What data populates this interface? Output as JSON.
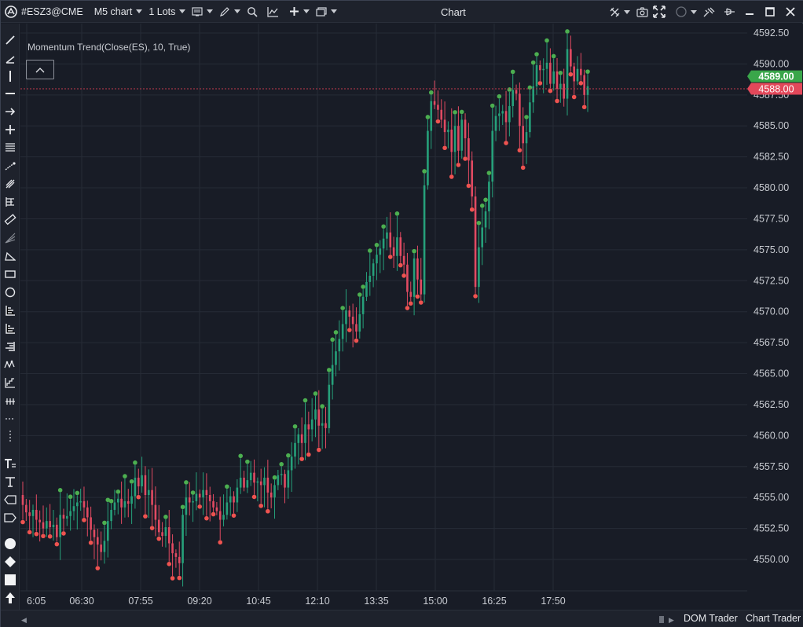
{
  "toolbar": {
    "symbol": "#ESZ3@CME",
    "chart_type": "M5 chart",
    "lots": "1 Lots",
    "title": "Chart"
  },
  "indicator": {
    "label": "Momentum Trend(Close(ES), 10, True)"
  },
  "price_axis": {
    "ticks": [
      "4592.50",
      "4590.00",
      "4587.50",
      "4585.00",
      "4582.50",
      "4580.00",
      "4577.50",
      "4575.00",
      "4572.50",
      "4570.00",
      "4567.50",
      "4565.00",
      "4562.50",
      "4560.00",
      "4557.50",
      "4555.00",
      "4552.50",
      "4550.00"
    ],
    "ask_label": "4589.00",
    "bid_label": "4588.00",
    "ask_color": "#3aa64a",
    "bid_color": "#e2485a"
  },
  "time_axis": {
    "ticks": [
      "6:05",
      "06:30",
      "07:55",
      "09:20",
      "10:45",
      "12:10",
      "13:35",
      "15:00",
      "16:25",
      "17:50"
    ]
  },
  "colors": {
    "up": "#26a07a",
    "down": "#e14a62",
    "dot_up": "#4caf50",
    "dot_down": "#ef5350",
    "grid": "#262b36",
    "background": "#181c26"
  },
  "bottom": {
    "tab_dom": "DOM Trader",
    "tab_chart": "Chart Trader"
  },
  "chart_data": {
    "type": "candlestick",
    "symbol": "#ESZ3@CME",
    "timeframe": "M5",
    "ylim": [
      4548.5,
      4593.5
    ],
    "price_ticks": [
      4592.5,
      4590,
      4587.5,
      4585,
      4582.5,
      4580,
      4577.5,
      4575,
      4572.5,
      4570,
      4567.5,
      4565,
      4562.5,
      4560,
      4557.5,
      4555,
      4552.5,
      4550
    ],
    "time_ticks": [
      "6:05",
      "06:30",
      "07:55",
      "09:20",
      "10:45",
      "12:10",
      "13:35",
      "15:00",
      "16:25",
      "17:50"
    ],
    "current_ask": 4589.0,
    "current_bid": 4588.0,
    "closes": [
      4554.4,
      4553.8,
      4553.5,
      4554.0,
      4553.2,
      4553.0,
      4552.5,
      4553.1,
      4552.6,
      4552.8,
      4551.8,
      4553.6,
      4553.3,
      4553.5,
      4553.9,
      4554.3,
      4554.6,
      4554.7,
      4554.2,
      4553.4,
      4552.4,
      4551.8,
      4551.2,
      4550.6,
      4551.5,
      4553.1,
      4554.0,
      4554.6,
      4554.9,
      4554.2,
      4554.7,
      4554.5,
      4555.1,
      4556.6,
      4555.9,
      4556.8,
      4555.2,
      4555.6,
      4554.4,
      4553.2,
      4552.2,
      4551.9,
      4552.6,
      4551.3,
      4550.5,
      4550.2,
      4549.7,
      4553.6,
      4555.0,
      4554.6,
      4554.7,
      4555.3,
      4555.0,
      4555.6,
      4555.2,
      4554.7,
      4554.2,
      4553.9,
      4553.2,
      4553.6,
      4554.6,
      4555.1,
      4554.6,
      4555.8,
      4556.6,
      4555.8,
      4556.4,
      4557.0,
      4556.2,
      4556.3,
      4556.0,
      4556.6,
      4555.4,
      4555.0,
      4556.0,
      4556.8,
      4556.9,
      4555.8,
      4557.2,
      4558.3,
      4559.4,
      4560.1,
      4559.4,
      4560.9,
      4560.5,
      4561.3,
      4562.1,
      4560.8,
      4561.0,
      4560.6,
      4564.1,
      4565.7,
      4566.8,
      4567.8,
      4569.0,
      4570.1,
      4569.6,
      4569.0,
      4568.4,
      4569.8,
      4571.2,
      4572.4,
      4572.9,
      4573.9,
      4574.6,
      4575.1,
      4575.9,
      4576.4,
      4575.2,
      4574.5,
      4576.0,
      4574.5,
      4573.8,
      4571.6,
      4571.2,
      4574.3,
      4572.6,
      4571.4,
      4580.2,
      4584.6,
      4587.0,
      4586.7,
      4586.3,
      4585.5,
      4584.5,
      4584.7,
      4582.9,
      4585.0,
      4583.0,
      4585.5,
      4584.0,
      4582.2,
      4579.3,
      4572.0,
      4575.2,
      4576.8,
      4578.1,
      4580.5,
      4584.6,
      4585.8,
      4586.0,
      4586.2,
      4585.3,
      4586.6,
      4587.9,
      4587.6,
      4585.0,
      4583.6,
      4584.5,
      4586.9,
      4588.2,
      4589.9,
      4589.5,
      4589.6,
      4590.1,
      4588.4,
      4589.4,
      4588.0,
      4588.4,
      4587.2,
      4591.2,
      4589.8,
      4588.6,
      4589.6,
      4589.1,
      4587.5,
      4588.2
    ]
  }
}
